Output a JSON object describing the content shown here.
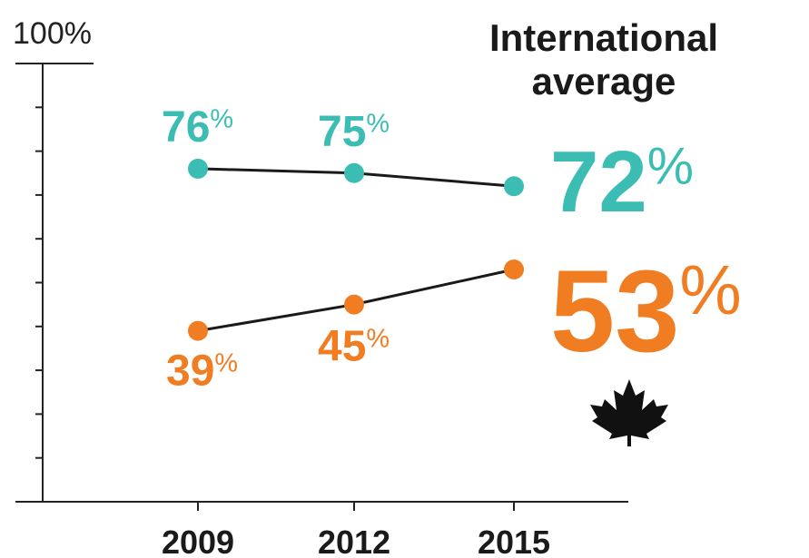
{
  "chart_data": {
    "type": "line",
    "title": [
      "International",
      "average"
    ],
    "categories": [
      "2009",
      "2012",
      "2015"
    ],
    "series": [
      {
        "name": "International average",
        "color": "#3bbdb3",
        "values": [
          76,
          75,
          72
        ],
        "value_labels": [
          "76%",
          "75%",
          "72%"
        ]
      },
      {
        "color": "#f07d22",
        "values": [
          39,
          45,
          53
        ],
        "value_labels": [
          "39%",
          "45%",
          "53%"
        ]
      }
    ],
    "ylim": [
      0,
      100
    ],
    "yticks": [
      0,
      10,
      20,
      30,
      40,
      50,
      60,
      70,
      80,
      90,
      {
        "value": 100,
        "label": "100%"
      }
    ]
  }
}
